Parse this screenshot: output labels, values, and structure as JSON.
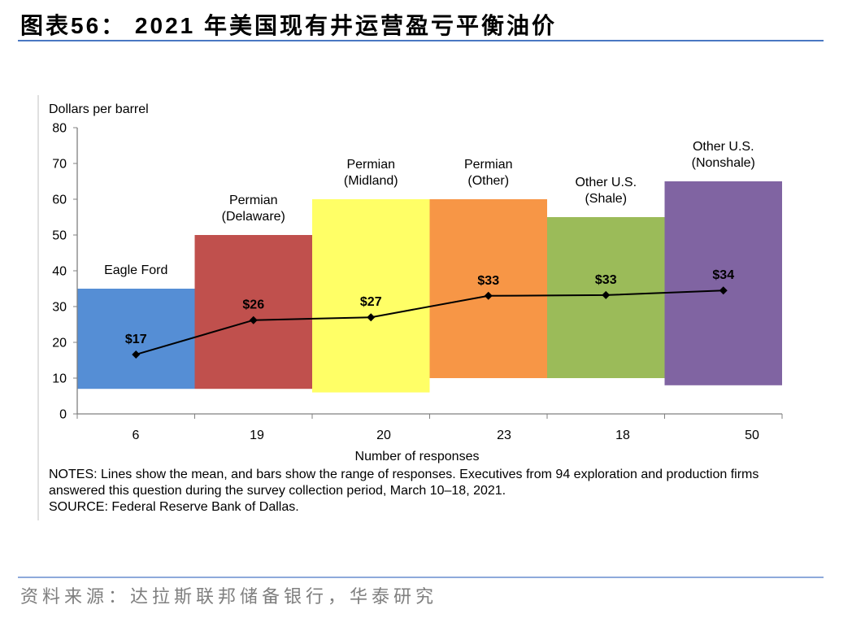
{
  "title": "图表56： 2021 年美国现有井运营盈亏平衡油价",
  "chart_data": {
    "type": "bar",
    "ylabel": "Dollars per barrel",
    "xlabel": "Number of responses",
    "ylim": [
      0,
      80
    ],
    "yticks": [
      0,
      10,
      20,
      30,
      40,
      50,
      60,
      70,
      80
    ],
    "categories": [
      {
        "label_lines": [
          "Eagle Ford"
        ],
        "responses": "6",
        "low": 7,
        "high": 35,
        "mean": 16.6,
        "mean_label": "$17",
        "color": "#558ED5"
      },
      {
        "label_lines": [
          "Permian",
          "(Delaware)"
        ],
        "responses": "19",
        "low": 7,
        "high": 50,
        "mean": 26.2,
        "mean_label": "$26",
        "color": "#C0504D"
      },
      {
        "label_lines": [
          "Permian",
          "(Midland)"
        ],
        "responses": "20",
        "low": 6,
        "high": 60,
        "mean": 27.0,
        "mean_label": "$27",
        "color": "#FFFF66"
      },
      {
        "label_lines": [
          "Permian",
          "(Other)"
        ],
        "responses": "23",
        "low": 10,
        "high": 60,
        "mean": 33.0,
        "mean_label": "$33",
        "color": "#F79646"
      },
      {
        "label_lines": [
          "Other U.S.",
          "(Shale)"
        ],
        "responses": "18",
        "low": 10,
        "high": 55,
        "mean": 33.2,
        "mean_label": "$33",
        "color": "#9BBB59"
      },
      {
        "label_lines": [
          "Other U.S.",
          "(Nonshale)"
        ],
        "responses": "50",
        "low": 8,
        "high": 65,
        "mean": 34.5,
        "mean_label": "$34",
        "color": "#8064A2"
      }
    ]
  },
  "notes": [
    "NOTES: Lines show the mean, and bars show the range of responses. Executives from 94 exploration and production firms",
    "answered this question during the survey collection period, March 10–18, 2021.",
    "SOURCE: Federal Reserve Bank of Dallas."
  ],
  "source": "资料来源：达拉斯联邦储备银行，华泰研究"
}
